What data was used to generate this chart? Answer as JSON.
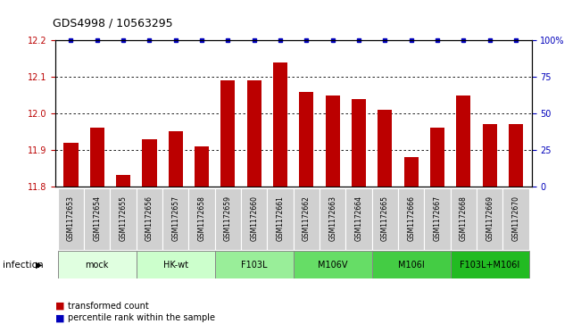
{
  "title": "GDS4998 / 10563295",
  "samples": [
    "GSM1172653",
    "GSM1172654",
    "GSM1172655",
    "GSM1172656",
    "GSM1172657",
    "GSM1172658",
    "GSM1172659",
    "GSM1172660",
    "GSM1172661",
    "GSM1172662",
    "GSM1172663",
    "GSM1172664",
    "GSM1172665",
    "GSM1172666",
    "GSM1172667",
    "GSM1172668",
    "GSM1172669",
    "GSM1172670"
  ],
  "values": [
    11.92,
    11.96,
    11.83,
    11.93,
    11.95,
    11.91,
    12.09,
    12.09,
    12.14,
    12.06,
    12.05,
    12.04,
    12.01,
    11.88,
    11.96,
    12.05,
    11.97,
    11.97
  ],
  "ylim": [
    11.8,
    12.2
  ],
  "yticks_left": [
    11.8,
    11.9,
    12.0,
    12.1,
    12.2
  ],
  "yticks_right": [
    0,
    25,
    50,
    75,
    100
  ],
  "bar_color": "#bb0000",
  "dot_color": "#0000bb",
  "groups": [
    {
      "label": "mock",
      "indices": [
        0,
        1,
        2
      ],
      "color": "#e0ffe0"
    },
    {
      "label": "HK-wt",
      "indices": [
        3,
        4,
        5
      ],
      "color": "#ccffcc"
    },
    {
      "label": "F103L",
      "indices": [
        6,
        7,
        8
      ],
      "color": "#99ee99"
    },
    {
      "label": "M106V",
      "indices": [
        9,
        10,
        11
      ],
      "color": "#66dd66"
    },
    {
      "label": "M106I",
      "indices": [
        12,
        13,
        14
      ],
      "color": "#44cc44"
    },
    {
      "label": "F103L+M106I",
      "indices": [
        15,
        16,
        17
      ],
      "color": "#22bb22"
    }
  ],
  "sample_box_color": "#d0d0d0",
  "infection_label": "infection",
  "legend": [
    {
      "label": "transformed count",
      "color": "#bb0000"
    },
    {
      "label": "percentile rank within the sample",
      "color": "#0000bb"
    }
  ],
  "title_fontsize": 9,
  "tick_fontsize": 7,
  "sample_fontsize": 5.5,
  "group_fontsize": 7,
  "legend_fontsize": 7
}
